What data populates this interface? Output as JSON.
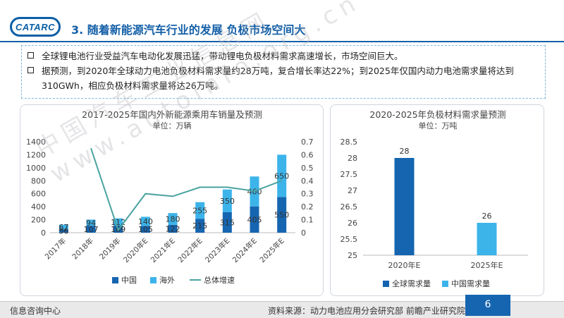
{
  "header": {
    "logo_text": "CATARC",
    "title": "3. 随着新能源汽车行业的发展 负极市场空间大"
  },
  "bullets": [
    {
      "text": "全球锂电池行业受益汽车电动化发展迅猛，带动锂电负极材料需求高速增长，市场空间巨大。"
    },
    {
      "text": "据预测，到2020年全球动力电池负极材料需求量约28万吨，复合增长率达22%；到2025年仅国内动力电池需求量将达到310GWh，相应负极材料需求量将达26万吨。"
    }
  ],
  "watermark": {
    "line1": "中国汽车工业信息网",
    "line2": "www.autoinfo.org.cn"
  },
  "chart_data": [
    {
      "type": "bar",
      "title": "2017-2025年国内外新能源乘用车销量及预测",
      "subtitle": "单位：万辆",
      "categories": [
        "2017年",
        "2018年",
        "2019年",
        "2020年E",
        "2021年E",
        "2022年E",
        "2023年E",
        "2024年E",
        "2025年E"
      ],
      "stacked": true,
      "series": [
        {
          "name": "中国",
          "values": [
            56,
            107,
            109,
            105,
            122,
            215,
            315,
            405,
            550
          ],
          "color": "#1565b0"
        },
        {
          "name": "海外",
          "values": [
            67,
            94,
            112,
            140,
            180,
            255,
            350,
            460,
            650
          ],
          "color": "#3cb4ea"
        },
        {
          "name": "总体增速",
          "type": "line",
          "axis": "secondary",
          "values": [
            null,
            0.65,
            0.02,
            0.3,
            0.28,
            0.35,
            0.35,
            0.32,
            0.4
          ],
          "color": "#4aa3a0"
        }
      ],
      "ylim": [
        0,
        1400
      ],
      "y_ticks": [
        "0",
        "200",
        "400",
        "600",
        "800",
        "1000",
        "1200",
        "1400"
      ],
      "y2lim": [
        0,
        0.7
      ],
      "y2_ticks": [
        "0",
        "0.1",
        "0.2",
        "0.3",
        "0.4",
        "0.5",
        "0.6",
        "0.7"
      ],
      "legend": "bottom"
    },
    {
      "type": "bar",
      "title": "2020-2025年负极材料需求量预测",
      "subtitle": "单位：万吨",
      "categories": [
        "2020年E",
        "2025年E"
      ],
      "series": [
        {
          "name": "全球需求量",
          "values": [
            28,
            null
          ],
          "color": "#1565b0"
        },
        {
          "name": "中国需求量",
          "values": [
            null,
            26
          ],
          "color": "#3cb4ea"
        }
      ],
      "data_labels": [
        "28",
        "26"
      ],
      "ylim": [
        25,
        28.5
      ],
      "y_ticks": [
        "25",
        "25.5",
        "26",
        "26.5",
        "27",
        "27.5",
        "28",
        "28.5"
      ],
      "legend": "bottom"
    }
  ],
  "footer": {
    "left": "信息咨询中心",
    "source": "资料来源：动力电池应用分会研究部 前瞻产业研究院",
    "page": "6"
  }
}
